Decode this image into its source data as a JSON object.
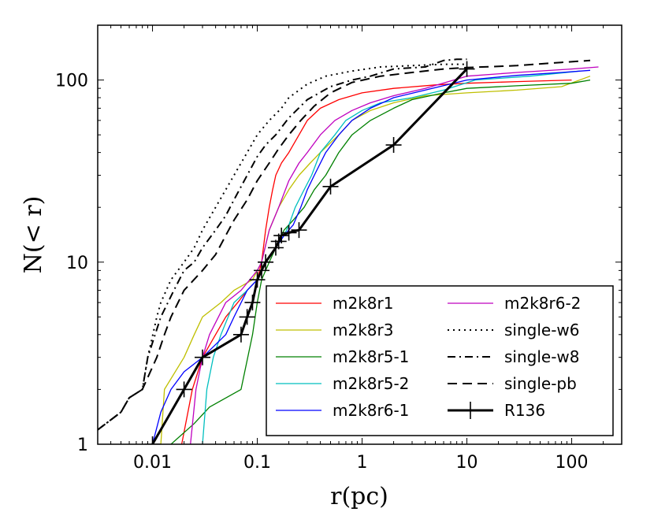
{
  "chart_data": {
    "type": "line",
    "xscale": "log",
    "yscale": "log",
    "xlim": [
      0.003,
      300
    ],
    "ylim": [
      1,
      200
    ],
    "xlabel": "r(pc)",
    "ylabel": "N(< r)",
    "xticks": [
      {
        "value": 0.01,
        "label": "0.01"
      },
      {
        "value": 0.1,
        "label": "0.1"
      },
      {
        "value": 1,
        "label": "1"
      },
      {
        "value": 10,
        "label": "10"
      },
      {
        "value": 100,
        "label": "100"
      }
    ],
    "yticks": [
      {
        "value": 1,
        "label": "1"
      },
      {
        "value": 10,
        "label": "10"
      },
      {
        "value": 100,
        "label": "100"
      }
    ],
    "legend_position": "lower-right",
    "series": [
      {
        "name": "m2k8r1",
        "color": "#ff0000",
        "style": "solid",
        "width": 1.3,
        "points": [
          [
            0.019,
            1
          ],
          [
            0.024,
            2
          ],
          [
            0.03,
            3
          ],
          [
            0.04,
            4
          ],
          [
            0.05,
            5
          ],
          [
            0.065,
            6
          ],
          [
            0.08,
            7
          ],
          [
            0.1,
            8
          ],
          [
            0.11,
            10
          ],
          [
            0.12,
            15
          ],
          [
            0.13,
            20
          ],
          [
            0.14,
            25
          ],
          [
            0.15,
            30
          ],
          [
            0.17,
            35
          ],
          [
            0.2,
            40
          ],
          [
            0.25,
            50
          ],
          [
            0.3,
            60
          ],
          [
            0.4,
            70
          ],
          [
            0.6,
            78
          ],
          [
            1.0,
            85
          ],
          [
            2,
            90
          ],
          [
            5,
            94
          ],
          [
            10,
            96
          ],
          [
            30,
            98
          ],
          [
            100,
            100
          ]
        ]
      },
      {
        "name": "m2k8r3",
        "color": "#bfbf00",
        "style": "solid",
        "width": 1.3,
        "points": [
          [
            0.012,
            1
          ],
          [
            0.013,
            2
          ],
          [
            0.02,
            3
          ],
          [
            0.025,
            4
          ],
          [
            0.03,
            5
          ],
          [
            0.045,
            6
          ],
          [
            0.06,
            7
          ],
          [
            0.09,
            8
          ],
          [
            0.11,
            10
          ],
          [
            0.13,
            15
          ],
          [
            0.16,
            20
          ],
          [
            0.2,
            25
          ],
          [
            0.25,
            30
          ],
          [
            0.32,
            35
          ],
          [
            0.4,
            40
          ],
          [
            0.6,
            50
          ],
          [
            0.8,
            60
          ],
          [
            1.2,
            68
          ],
          [
            2,
            75
          ],
          [
            4,
            82
          ],
          [
            10,
            85
          ],
          [
            30,
            88
          ],
          [
            80,
            92
          ],
          [
            150,
            105
          ]
        ]
      },
      {
        "name": "m2k8r5-1",
        "color": "#008000",
        "style": "solid",
        "width": 1.3,
        "points": [
          [
            0.015,
            1
          ],
          [
            0.025,
            1.3
          ],
          [
            0.035,
            1.6
          ],
          [
            0.07,
            2
          ],
          [
            0.09,
            4
          ],
          [
            0.1,
            6
          ],
          [
            0.11,
            8
          ],
          [
            0.13,
            10
          ],
          [
            0.15,
            12
          ],
          [
            0.18,
            15
          ],
          [
            0.22,
            17
          ],
          [
            0.28,
            20
          ],
          [
            0.35,
            25
          ],
          [
            0.45,
            30
          ],
          [
            0.6,
            40
          ],
          [
            0.8,
            50
          ],
          [
            1.2,
            60
          ],
          [
            2,
            70
          ],
          [
            3,
            78
          ],
          [
            6,
            85
          ],
          [
            10,
            90
          ],
          [
            30,
            93
          ],
          [
            100,
            96
          ],
          [
            150,
            100
          ]
        ]
      },
      {
        "name": "m2k8r5-2",
        "color": "#00bfbf",
        "style": "solid",
        "width": 1.3,
        "points": [
          [
            0.03,
            1
          ],
          [
            0.033,
            2
          ],
          [
            0.038,
            3
          ],
          [
            0.045,
            4
          ],
          [
            0.06,
            6
          ],
          [
            0.08,
            7
          ],
          [
            0.1,
            8
          ],
          [
            0.12,
            10
          ],
          [
            0.15,
            12
          ],
          [
            0.18,
            14
          ],
          [
            0.2,
            16
          ],
          [
            0.23,
            20
          ],
          [
            0.28,
            25
          ],
          [
            0.33,
            30
          ],
          [
            0.4,
            40
          ],
          [
            0.55,
            50
          ],
          [
            0.7,
            60
          ],
          [
            1,
            68
          ],
          [
            1.5,
            75
          ],
          [
            3,
            80
          ],
          [
            6,
            88
          ],
          [
            12,
            100
          ],
          [
            40,
            105
          ],
          [
            120,
            112
          ]
        ]
      },
      {
        "name": "m2k8r6-1",
        "color": "#0000ff",
        "style": "solid",
        "width": 1.3,
        "points": [
          [
            0.01,
            1
          ],
          [
            0.012,
            1.5
          ],
          [
            0.015,
            2
          ],
          [
            0.02,
            2.5
          ],
          [
            0.03,
            3
          ],
          [
            0.05,
            4
          ],
          [
            0.06,
            5
          ],
          [
            0.08,
            7
          ],
          [
            0.1,
            8
          ],
          [
            0.12,
            10
          ],
          [
            0.15,
            12
          ],
          [
            0.18,
            14
          ],
          [
            0.22,
            16
          ],
          [
            0.26,
            20
          ],
          [
            0.3,
            25
          ],
          [
            0.35,
            30
          ],
          [
            0.45,
            40
          ],
          [
            0.6,
            50
          ],
          [
            0.8,
            60
          ],
          [
            1.2,
            70
          ],
          [
            2,
            80
          ],
          [
            4,
            88
          ],
          [
            10,
            100
          ],
          [
            30,
            106
          ],
          [
            80,
            110
          ],
          [
            150,
            113
          ]
        ]
      },
      {
        "name": "m2k8r6-2",
        "color": "#bf00bf",
        "style": "solid",
        "width": 1.3,
        "points": [
          [
            0.023,
            1
          ],
          [
            0.026,
            2
          ],
          [
            0.03,
            3
          ],
          [
            0.035,
            4
          ],
          [
            0.05,
            6
          ],
          [
            0.07,
            7
          ],
          [
            0.1,
            9
          ],
          [
            0.11,
            10
          ],
          [
            0.13,
            15
          ],
          [
            0.16,
            20
          ],
          [
            0.2,
            28
          ],
          [
            0.25,
            35
          ],
          [
            0.3,
            40
          ],
          [
            0.4,
            50
          ],
          [
            0.55,
            60
          ],
          [
            0.8,
            68
          ],
          [
            1.2,
            75
          ],
          [
            2,
            82
          ],
          [
            4,
            90
          ],
          [
            10,
            105
          ],
          [
            30,
            110
          ],
          [
            100,
            115
          ],
          [
            180,
            118
          ]
        ]
      },
      {
        "name": "single-w6",
        "color": "#000000",
        "style": "dotted",
        "width": 2,
        "points": [
          [
            0.003,
            1.2
          ],
          [
            0.005,
            1.5
          ],
          [
            0.006,
            1.8
          ],
          [
            0.008,
            2
          ],
          [
            0.009,
            3
          ],
          [
            0.011,
            5
          ],
          [
            0.012,
            6
          ],
          [
            0.015,
            8
          ],
          [
            0.02,
            10
          ],
          [
            0.025,
            12
          ],
          [
            0.03,
            15
          ],
          [
            0.04,
            20
          ],
          [
            0.05,
            25
          ],
          [
            0.06,
            30
          ],
          [
            0.08,
            40
          ],
          [
            0.1,
            50
          ],
          [
            0.13,
            60
          ],
          [
            0.17,
            70
          ],
          [
            0.2,
            80
          ],
          [
            0.3,
            95
          ],
          [
            0.45,
            105
          ],
          [
            0.8,
            112
          ],
          [
            1.5,
            118
          ],
          [
            3,
            120
          ],
          [
            6,
            122
          ],
          [
            10,
            122
          ]
        ]
      },
      {
        "name": "single-w8",
        "color": "#000000",
        "style": "dashdot",
        "width": 2,
        "points": [
          [
            0.003,
            1.2
          ],
          [
            0.005,
            1.5
          ],
          [
            0.006,
            1.8
          ],
          [
            0.008,
            2
          ],
          [
            0.009,
            3
          ],
          [
            0.012,
            5
          ],
          [
            0.016,
            7
          ],
          [
            0.02,
            9
          ],
          [
            0.025,
            10
          ],
          [
            0.03,
            12
          ],
          [
            0.04,
            15
          ],
          [
            0.05,
            18
          ],
          [
            0.06,
            22
          ],
          [
            0.08,
            30
          ],
          [
            0.1,
            38
          ],
          [
            0.12,
            44
          ],
          [
            0.15,
            50
          ],
          [
            0.2,
            62
          ],
          [
            0.3,
            78
          ],
          [
            0.5,
            92
          ],
          [
            0.8,
            100
          ],
          [
            1.2,
            105
          ],
          [
            2,
            115
          ],
          [
            4,
            118
          ],
          [
            6,
            128
          ],
          [
            8,
            130
          ],
          [
            10,
            130
          ]
        ]
      },
      {
        "name": "single-pb",
        "color": "#000000",
        "style": "dashed",
        "width": 2,
        "points": [
          [
            0.003,
            1.2
          ],
          [
            0.005,
            1.5
          ],
          [
            0.006,
            1.8
          ],
          [
            0.008,
            2
          ],
          [
            0.011,
            3
          ],
          [
            0.013,
            4
          ],
          [
            0.015,
            5
          ],
          [
            0.02,
            7
          ],
          [
            0.03,
            9
          ],
          [
            0.04,
            11
          ],
          [
            0.05,
            14
          ],
          [
            0.06,
            17
          ],
          [
            0.08,
            22
          ],
          [
            0.1,
            28
          ],
          [
            0.13,
            35
          ],
          [
            0.16,
            42
          ],
          [
            0.2,
            50
          ],
          [
            0.26,
            60
          ],
          [
            0.35,
            72
          ],
          [
            0.5,
            85
          ],
          [
            0.8,
            97
          ],
          [
            1.5,
            105
          ],
          [
            3,
            110
          ],
          [
            6,
            115
          ],
          [
            10,
            117
          ],
          [
            30,
            120
          ],
          [
            80,
            125
          ],
          [
            150,
            128
          ]
        ]
      },
      {
        "name": "R136",
        "color": "#000000",
        "style": "solid",
        "width": 3,
        "markers": true,
        "points": [
          [
            0.01,
            1
          ],
          [
            0.02,
            2
          ],
          [
            0.03,
            3
          ],
          [
            0.07,
            4
          ],
          [
            0.08,
            5
          ],
          [
            0.09,
            6
          ],
          [
            0.1,
            8
          ],
          [
            0.11,
            9
          ],
          [
            0.12,
            10
          ],
          [
            0.15,
            12
          ],
          [
            0.16,
            13
          ],
          [
            0.17,
            14
          ],
          [
            0.2,
            14.5
          ],
          [
            0.25,
            15
          ],
          [
            0.5,
            26
          ],
          [
            2,
            44
          ],
          [
            10,
            115
          ]
        ]
      }
    ]
  }
}
